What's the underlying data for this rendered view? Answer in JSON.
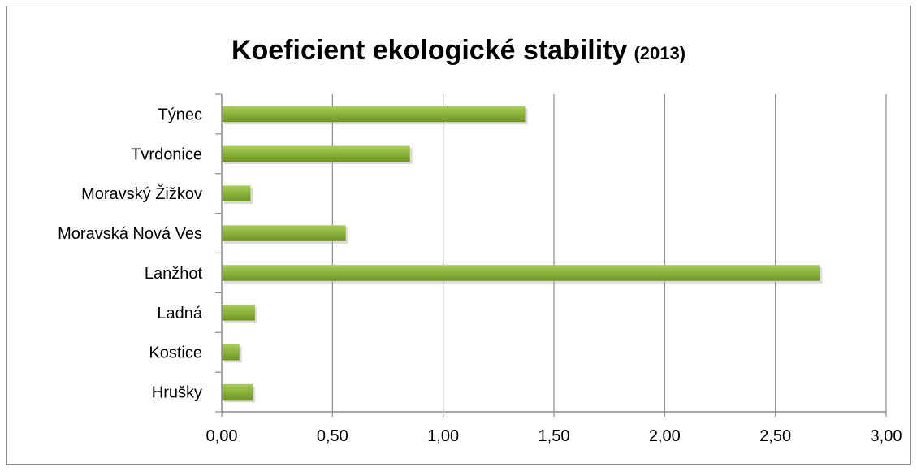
{
  "chart_data": {
    "type": "bar",
    "orientation": "horizontal",
    "title": "Koeficient ekologické stability",
    "subtitle": "(2013)",
    "categories": [
      "Týnec",
      "Tvrdonice",
      "Moravský Žižkov",
      "Moravská Nová Ves",
      "Lanžhot",
      "Ladná",
      "Kostice",
      "Hrušky"
    ],
    "values": [
      1.37,
      0.85,
      0.13,
      0.56,
      2.7,
      0.15,
      0.08,
      0.14
    ],
    "xlim": [
      0,
      3.0
    ],
    "xticks": [
      "0,00",
      "0,50",
      "1,00",
      "1,50",
      "2,00",
      "2,50",
      "3,00"
    ],
    "grid": true,
    "legend": false,
    "bar_color": "#8db53c"
  }
}
